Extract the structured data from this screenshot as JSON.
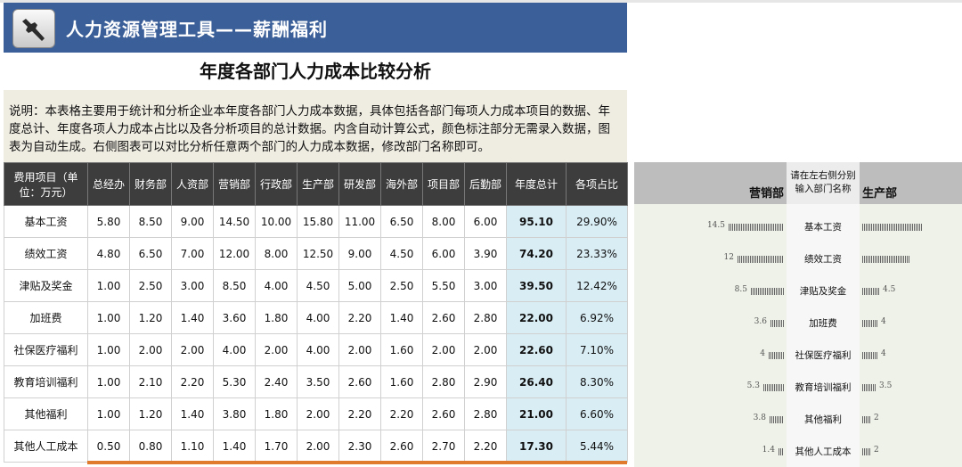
{
  "app": {
    "title": "人力资源管理工具——薪酬福利",
    "logo_icon": "wrench-icon"
  },
  "page": {
    "subtitle": "年度各部门人力成本比较分析",
    "description": "说明：本表格主要用于统计和分析企业本年度各部门人力成本数据，具体包括各部门每项人力成本项目的数据、年度总计、年度各项人力成本占比以及各分析项目的总计数据。内含自动计算公式，颜色标注部分无需录入数据，图表为自动生成。右侧图表可以对比分析任意两个部门的人力成本数据，修改部门名称即可。"
  },
  "table": {
    "headers": [
      "费用项目（单位：万元）",
      "总经办",
      "财务部",
      "人资部",
      "营销部",
      "行政部",
      "生产部",
      "研发部",
      "海外部",
      "项目部",
      "后勤部",
      "年度总计",
      "各项占比"
    ],
    "rows": [
      {
        "item": "基本工资",
        "values": [
          "5.80",
          "8.50",
          "9.00",
          "14.50",
          "10.00",
          "15.80",
          "11.00",
          "6.50",
          "8.00",
          "6.00"
        ],
        "total": "95.10",
        "pct": "29.90%"
      },
      {
        "item": "绩效工资",
        "values": [
          "4.80",
          "6.50",
          "7.00",
          "12.00",
          "8.00",
          "12.50",
          "9.00",
          "4.50",
          "6.00",
          "3.90"
        ],
        "total": "74.20",
        "pct": "23.33%"
      },
      {
        "item": "津贴及奖金",
        "values": [
          "1.00",
          "2.50",
          "3.00",
          "8.50",
          "4.00",
          "4.50",
          "5.00",
          "2.50",
          "5.50",
          "3.00"
        ],
        "total": "39.50",
        "pct": "12.42%"
      },
      {
        "item": "加班费",
        "values": [
          "1.00",
          "1.20",
          "1.40",
          "3.60",
          "1.80",
          "4.00",
          "2.20",
          "1.40",
          "2.60",
          "2.80"
        ],
        "total": "22.00",
        "pct": "6.92%"
      },
      {
        "item": "社保医疗福利",
        "values": [
          "1.00",
          "2.00",
          "2.00",
          "4.00",
          "2.00",
          "4.00",
          "2.00",
          "1.60",
          "2.00",
          "2.00"
        ],
        "total": "22.60",
        "pct": "7.10%"
      },
      {
        "item": "教育培训福利",
        "values": [
          "1.00",
          "2.10",
          "2.20",
          "5.30",
          "2.40",
          "3.50",
          "2.60",
          "1.60",
          "2.80",
          "2.90"
        ],
        "total": "26.40",
        "pct": "8.30%"
      },
      {
        "item": "其他福利",
        "values": [
          "1.00",
          "1.20",
          "1.40",
          "3.80",
          "1.80",
          "2.00",
          "2.20",
          "2.20",
          "2.60",
          "2.80"
        ],
        "total": "21.00",
        "pct": "6.60%"
      },
      {
        "item": "其他人工成本",
        "values": [
          "0.50",
          "0.80",
          "1.10",
          "1.40",
          "1.70",
          "2.00",
          "2.30",
          "2.60",
          "2.70",
          "2.20"
        ],
        "total": "17.30",
        "pct": "5.44%"
      }
    ]
  },
  "compare": {
    "left_dept": "营销部",
    "right_dept": "生产部",
    "hint": "请在左右侧分别输入部门名称"
  },
  "chart_data": {
    "type": "bar",
    "categories": [
      "基本工资",
      "绩效工资",
      "津贴及奖金",
      "加班费",
      "社保医疗福利",
      "教育培训福利",
      "其他福利",
      "其他人工成本"
    ],
    "series": [
      {
        "name": "营销部",
        "values": [
          14.5,
          12,
          8.5,
          3.6,
          4,
          5.3,
          3.8,
          1.4
        ],
        "labels": [
          "14.5",
          "12",
          "8.5",
          "3.6",
          "4",
          "5.3",
          "3.8",
          "1.4"
        ]
      },
      {
        "name": "生产部",
        "values": [
          15.8,
          12.5,
          4.5,
          4,
          4,
          3.5,
          2,
          2
        ],
        "labels": [
          "",
          "",
          "4.5",
          "4",
          "4",
          "3.5",
          "2",
          "2"
        ]
      }
    ]
  }
}
